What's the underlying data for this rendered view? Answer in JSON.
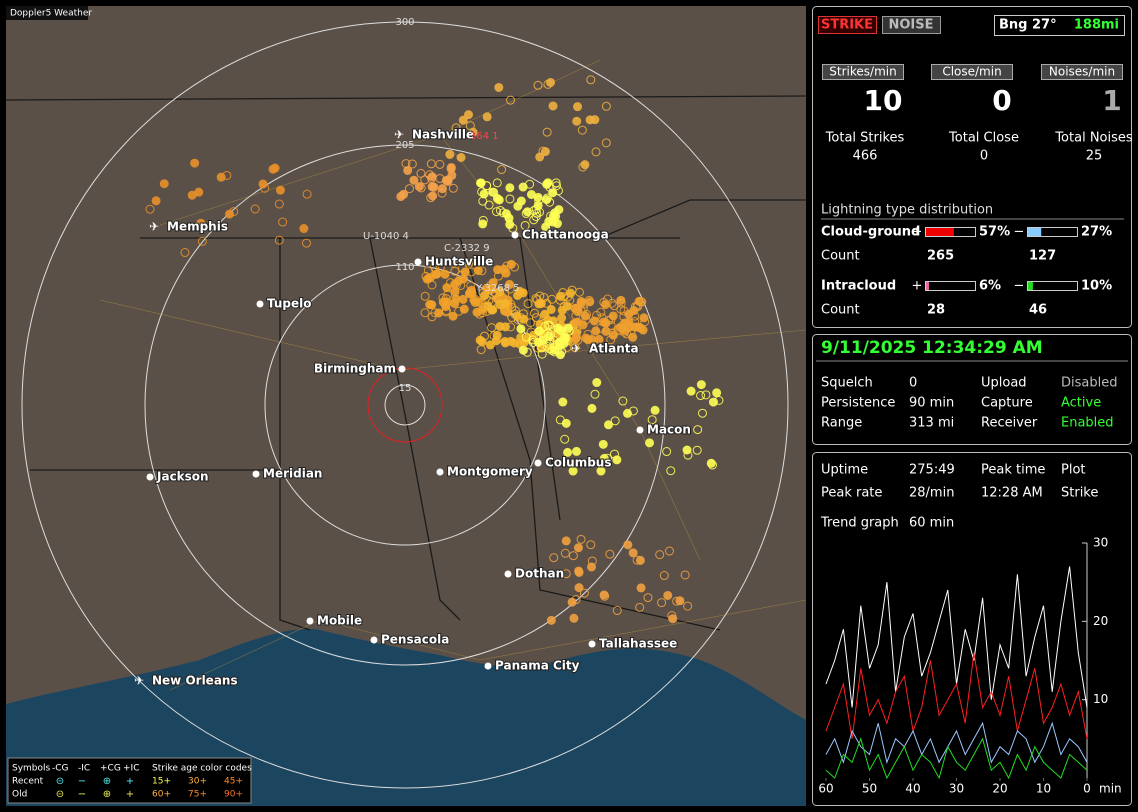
{
  "window_title": "Doppler5 Weather",
  "map": {
    "range_labels": [
      "15",
      "110",
      "205",
      "300"
    ],
    "cities": [
      "Nashville",
      "Memphis",
      "Chattanooga",
      "Huntsville",
      "Tupelo",
      "Birmingham",
      "Atlanta",
      "Macon",
      "Jackson",
      "Meridian",
      "Montgomery",
      "Columbus",
      "Dothan",
      "Mobile",
      "Pensacola",
      "Tallahassee",
      "Panama City",
      "New Orleans"
    ],
    "station_tags": [
      "364 1",
      "U-1040 4",
      "C-2332 9",
      "Y-3268 5"
    ],
    "legend": {
      "symbols_title": "Symbols",
      "symbol_names": [
        "-CG",
        "-IC",
        "+CG",
        "+IC"
      ],
      "age_title": "Strike age color codes",
      "recent": "Recent",
      "old": "Old",
      "recent_ages": [
        "15+",
        "30+",
        "45+"
      ],
      "old_ages": [
        "60+",
        "75+",
        "90+"
      ]
    }
  },
  "strike_panel": {
    "mode_buttons": [
      "STRIKE",
      "NOISE"
    ],
    "bearing": "Bng 27°",
    "distance": "188mi",
    "rate_headers": [
      "Strikes/min",
      "Close/min",
      "Noises/min"
    ],
    "rates": [
      10,
      0,
      1
    ],
    "total_labels": [
      "Total Strikes",
      "Total Close",
      "Total Noises"
    ],
    "totals": [
      466,
      0,
      25
    ],
    "distribution_title": "Lightning type distribution",
    "plus": "+",
    "minus": "−",
    "cloud_ground": "Cloud-ground",
    "intracloud": "Intracloud",
    "count": "Count",
    "cg_plus": {
      "value": 57,
      "label": "57%"
    },
    "cg_minus": {
      "value": 27,
      "label": "27%"
    },
    "cg_counts": [
      265,
      127
    ],
    "ic_plus": {
      "value": 6,
      "label": "6%"
    },
    "ic_minus": {
      "value": 10,
      "label": "10%"
    },
    "ic_counts": [
      28,
      46
    ]
  },
  "status_panel": {
    "datetime": "9/11/2025 12:34:29 AM",
    "rows": [
      [
        "Squelch",
        "0",
        "Upload",
        "Disabled"
      ],
      [
        "Persistence",
        "90 min",
        "Capture",
        "Active"
      ],
      [
        "Range",
        "313 mi",
        "Receiver",
        "Enabled"
      ]
    ]
  },
  "stats_panel": {
    "rows": [
      [
        "Uptime",
        "275:49",
        "Peak time",
        "Plot"
      ],
      [
        "Peak rate",
        "28/min",
        "12:28 AM",
        "Strike"
      ]
    ],
    "trend_label": "Trend graph",
    "trend_value": "60 min"
  },
  "chart_data": {
    "type": "line",
    "x_label": "min",
    "x": [
      60,
      58,
      56,
      54,
      52,
      50,
      48,
      46,
      44,
      42,
      40,
      38,
      36,
      34,
      32,
      30,
      28,
      26,
      24,
      22,
      20,
      18,
      16,
      14,
      12,
      10,
      8,
      6,
      4,
      2,
      0
    ],
    "xlim": [
      60,
      0
    ],
    "ylim": [
      0,
      30
    ],
    "xticks": [
      60,
      50,
      40,
      30,
      20,
      10,
      0
    ],
    "yticks": [
      10,
      20,
      30
    ],
    "series": [
      {
        "color": "#ffffff",
        "values": [
          12,
          15,
          19,
          9,
          22,
          14,
          17,
          25,
          11,
          18,
          21,
          13,
          16,
          20,
          24,
          12,
          19,
          15,
          23,
          10,
          17,
          14,
          26,
          13,
          18,
          22,
          11,
          20,
          27,
          16,
          9
        ]
      },
      {
        "color": "#ff2020",
        "values": [
          6,
          9,
          12,
          5,
          14,
          8,
          10,
          7,
          11,
          13,
          6,
          9,
          15,
          8,
          10,
          12,
          7,
          16,
          9,
          11,
          8,
          13,
          6,
          10,
          14,
          7,
          9,
          12,
          8,
          11,
          5
        ]
      },
      {
        "color": "#9cc8ff",
        "values": [
          3,
          5,
          2,
          6,
          4,
          3,
          7,
          2,
          5,
          4,
          6,
          3,
          5,
          2,
          4,
          6,
          3,
          5,
          7,
          2,
          4,
          3,
          6,
          5,
          2,
          4,
          7,
          3,
          5,
          4,
          2
        ]
      },
      {
        "color": "#22dd22",
        "values": [
          1,
          0,
          3,
          2,
          5,
          1,
          3,
          0,
          2,
          4,
          1,
          3,
          2,
          0,
          4,
          2,
          1,
          3,
          5,
          1,
          2,
          0,
          3,
          1,
          4,
          2,
          1,
          0,
          3,
          2,
          1
        ]
      }
    ]
  }
}
